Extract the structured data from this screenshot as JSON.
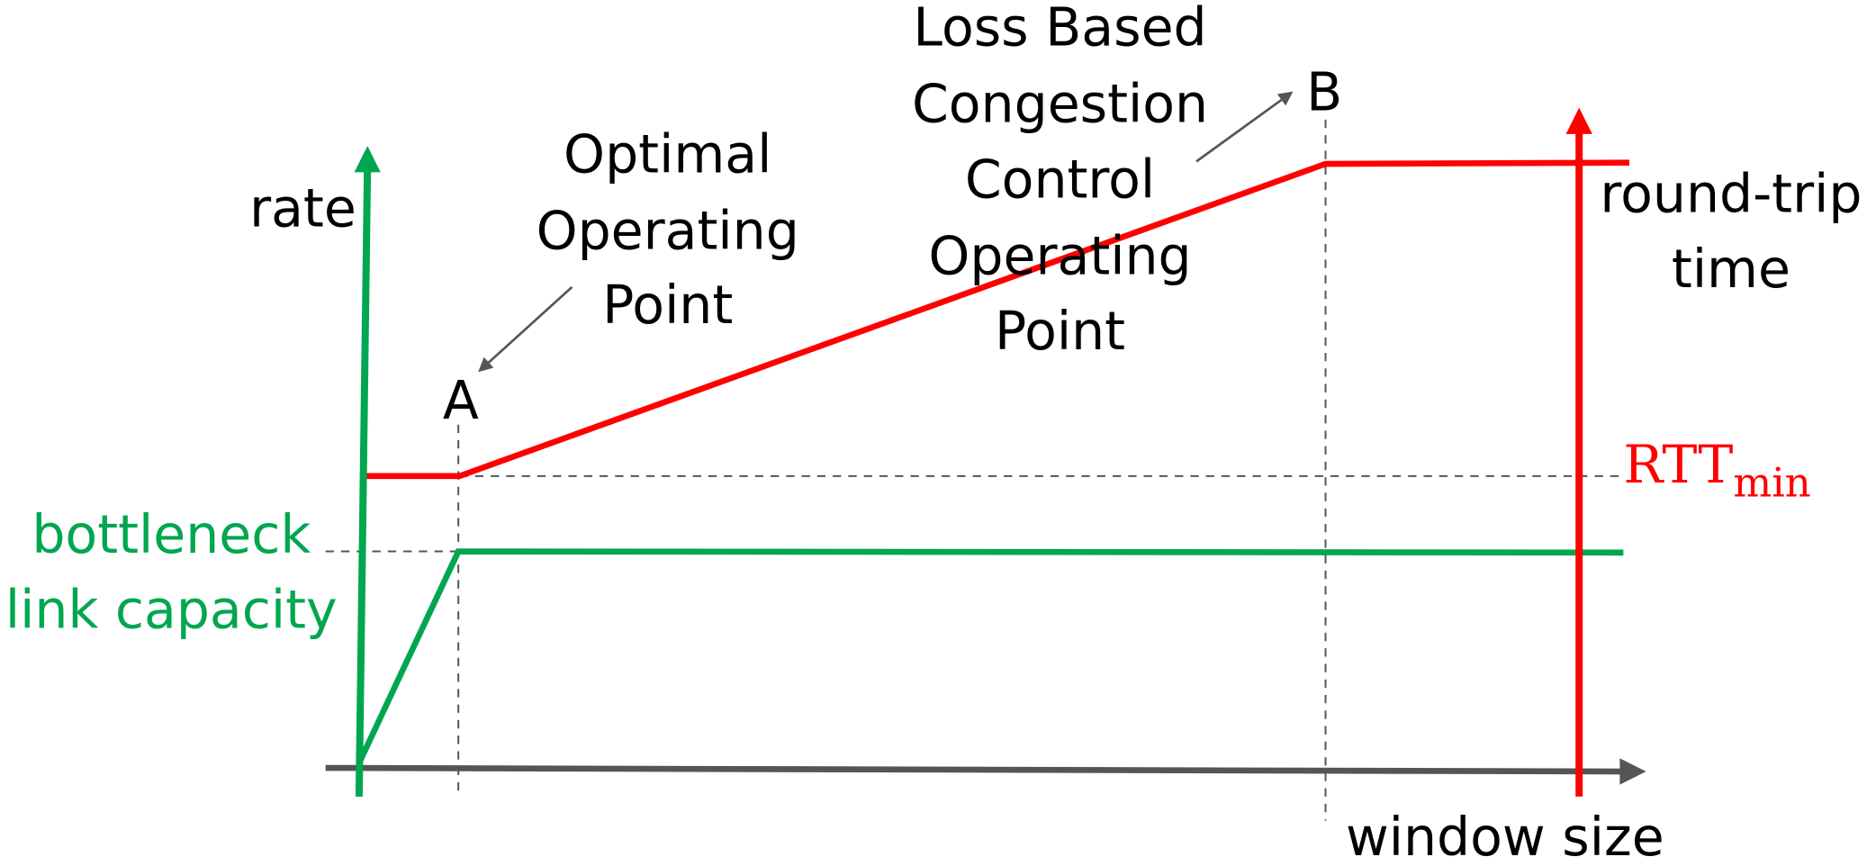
{
  "axes": {
    "y_left": "rate",
    "y_right": [
      "round-trip",
      "time"
    ],
    "x": "window size"
  },
  "points": {
    "a": "A",
    "b": "B"
  },
  "labels": {
    "optimal": [
      "Optimal",
      "Operating",
      "Point"
    ],
    "loss_based": [
      "Loss Based",
      "Congestion",
      "Control",
      "Operating",
      "Point"
    ],
    "bottleneck": [
      "bottleneck",
      "link capacity"
    ],
    "rtt": "RTT",
    "rtt_sub": "min"
  }
}
